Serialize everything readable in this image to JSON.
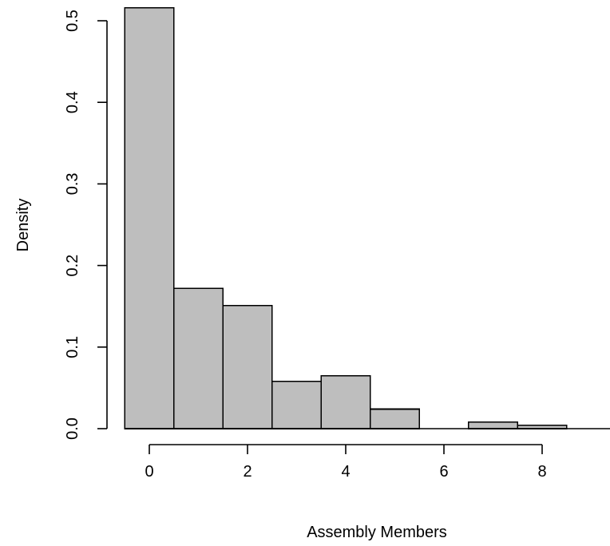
{
  "chart_data": {
    "type": "histogram",
    "title": "",
    "xlabel": "Assembly Members",
    "ylabel": "Density",
    "bins": [
      {
        "from": -0.5,
        "to": 0.5,
        "density": 0.516
      },
      {
        "from": 0.5,
        "to": 1.5,
        "density": 0.172
      },
      {
        "from": 1.5,
        "to": 2.5,
        "density": 0.151
      },
      {
        "from": 2.5,
        "to": 3.5,
        "density": 0.058
      },
      {
        "from": 3.5,
        "to": 4.5,
        "density": 0.065
      },
      {
        "from": 4.5,
        "to": 5.5,
        "density": 0.024
      },
      {
        "from": 5.5,
        "to": 6.5,
        "density": 0.0
      },
      {
        "from": 6.5,
        "to": 7.5,
        "density": 0.008
      },
      {
        "from": 7.5,
        "to": 8.5,
        "density": 0.004
      },
      {
        "from": 8.5,
        "to": 9.5,
        "density": 0.0
      }
    ],
    "xticks": [
      "0",
      "2",
      "4",
      "6",
      "8"
    ],
    "xtick_values": [
      0,
      2,
      4,
      6,
      8
    ],
    "yticks": [
      "0.0",
      "0.1",
      "0.2",
      "0.3",
      "0.4",
      "0.5"
    ],
    "ytick_values": [
      0.0,
      0.1,
      0.2,
      0.3,
      0.4,
      0.5
    ],
    "xlim": [
      -0.5,
      9.5
    ],
    "ylim": [
      0,
      0.52
    ],
    "bar_color": "#bebebe",
    "grid": false,
    "legend": "none"
  }
}
